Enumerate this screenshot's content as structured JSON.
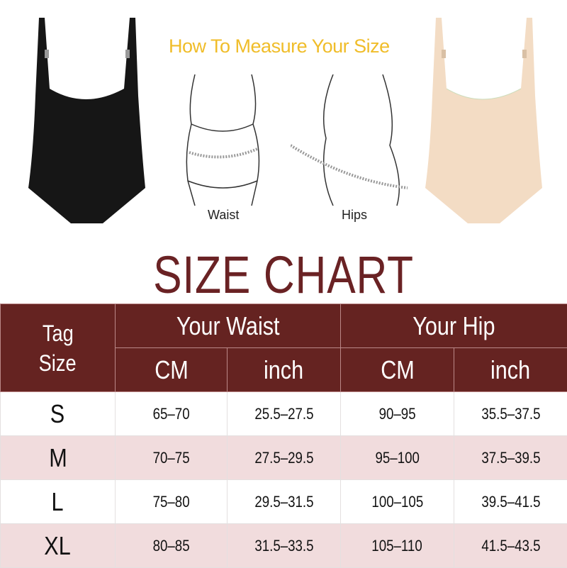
{
  "measure_title": "How To Measure Your Size",
  "illustration_labels": {
    "waist": "Waist",
    "hips": "Hips"
  },
  "title": "SIZE CHART",
  "colors": {
    "header_bg": "#652321",
    "title": "#6a2224",
    "stripe": "#f1dcdd",
    "measure_title": "#f0bd2a"
  },
  "table": {
    "tag_line1": "Tag",
    "tag_line2": "Size",
    "groups": [
      "Your Waist",
      "Your Hip"
    ],
    "units": [
      "CM",
      "inch",
      "CM",
      "inch"
    ],
    "rows": [
      [
        "S",
        "65–70",
        "25.5–27.5",
        "90–95",
        "35.5–37.5"
      ],
      [
        "M",
        "70–75",
        "27.5–29.5",
        "95–100",
        "37.5–39.5"
      ],
      [
        "L",
        "75–80",
        "29.5–31.5",
        "100–105",
        "39.5–41.5"
      ],
      [
        "XL",
        "80–85",
        "31.5–33.5",
        "105–110",
        "41.5–43.5"
      ]
    ]
  }
}
